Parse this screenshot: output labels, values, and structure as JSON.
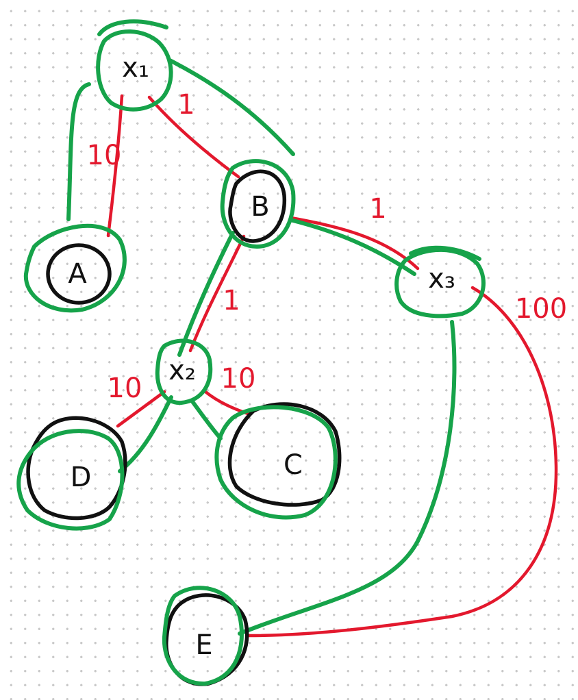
{
  "colors": {
    "ink": "#111111",
    "tree_edge": "#16a34a",
    "weight": "#e3182d"
  },
  "nodes": {
    "x1": "x₁",
    "x2": "x₂",
    "x3": "x₃",
    "a": "A",
    "b": "B",
    "c": "C",
    "d": "D",
    "e": "E"
  },
  "weights": {
    "x1_a": "10",
    "x1_b": "1",
    "b_x3": "1",
    "x3_e": "100",
    "b_x2": "1",
    "x2_d": "10",
    "x2_c": "10"
  }
}
